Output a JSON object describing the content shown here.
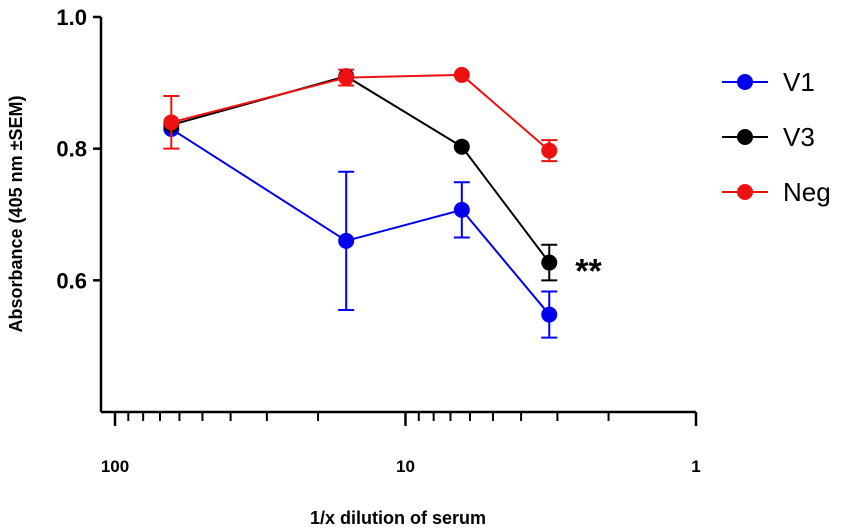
{
  "chart_data": {
    "type": "line",
    "title": "",
    "xlabel": "1/x dilution of serum",
    "ylabel": "Absorbance  (405 nm ±SEM)",
    "x_scale": "log",
    "x_reversed": true,
    "xlim": [
      100,
      1
    ],
    "x_ticks": [
      100,
      10,
      1
    ],
    "x_tick_labels": [
      "100",
      "10",
      "1"
    ],
    "ylim": [
      0.4,
      1.0
    ],
    "y_ticks": [
      0.6,
      0.8,
      1.0
    ],
    "y_tick_labels": [
      "0.6",
      "0.8",
      "1.0"
    ],
    "grid": false,
    "legend_position": "right",
    "series": [
      {
        "name": "V1",
        "color": "#0000ee",
        "x": [
          64,
          16,
          6.4,
          3.2
        ],
        "y": [
          0.83,
          0.66,
          0.707,
          0.548
        ],
        "err": [
          0.0,
          0.105,
          0.042,
          0.035
        ]
      },
      {
        "name": "V3",
        "color": "#000000",
        "x": [
          64,
          16,
          6.4,
          3.2
        ],
        "y": [
          0.836,
          0.91,
          0.803,
          0.627
        ],
        "err": [
          0.0,
          0.0,
          0.0,
          0.027
        ]
      },
      {
        "name": "Neg",
        "color": "#ee1111",
        "x": [
          64,
          16,
          6.4,
          3.2
        ],
        "y": [
          0.84,
          0.908,
          0.912,
          0.797
        ],
        "err": [
          0.04,
          0.012,
          0.0,
          0.016
        ]
      }
    ],
    "annotations": [
      {
        "text": "**",
        "x": 3.2,
        "y": 0.627
      }
    ]
  }
}
